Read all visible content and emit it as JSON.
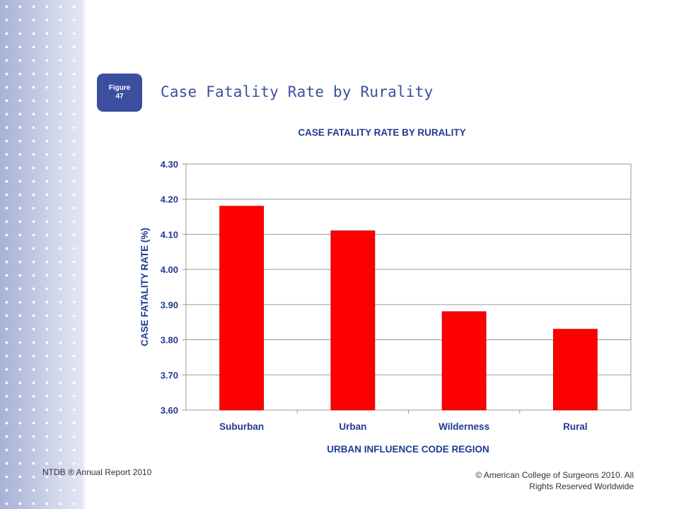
{
  "figure_badge": {
    "line1": "Figure",
    "line2": "47"
  },
  "slide_title": "Case Fatality Rate by Rurality",
  "footer": {
    "left": "NTDB ® Annual Report 2010",
    "right_line1": "© American College of Surgeons 2010.  All",
    "right_line2": "Rights Reserved Worldwide"
  },
  "colors": {
    "bar": "#ff0000",
    "text": "#1f3a93",
    "badge": "#3c4f9e"
  },
  "chart_data": {
    "type": "bar",
    "title": "CASE FATALITY RATE BY RURALITY",
    "xlabel": "URBAN INFLUENCE CODE REGION",
    "ylabel": "CASE FATALITY RATE (%)",
    "categories": [
      "Suburban",
      "Urban",
      "Wilderness",
      "Rural"
    ],
    "values": [
      4.18,
      4.11,
      3.88,
      3.83
    ],
    "ylim": [
      3.6,
      4.3
    ],
    "yticks": [
      "3.60",
      "3.70",
      "3.80",
      "3.90",
      "4.00",
      "4.10",
      "4.20",
      "4.30"
    ],
    "grid": true,
    "legend": "none"
  }
}
